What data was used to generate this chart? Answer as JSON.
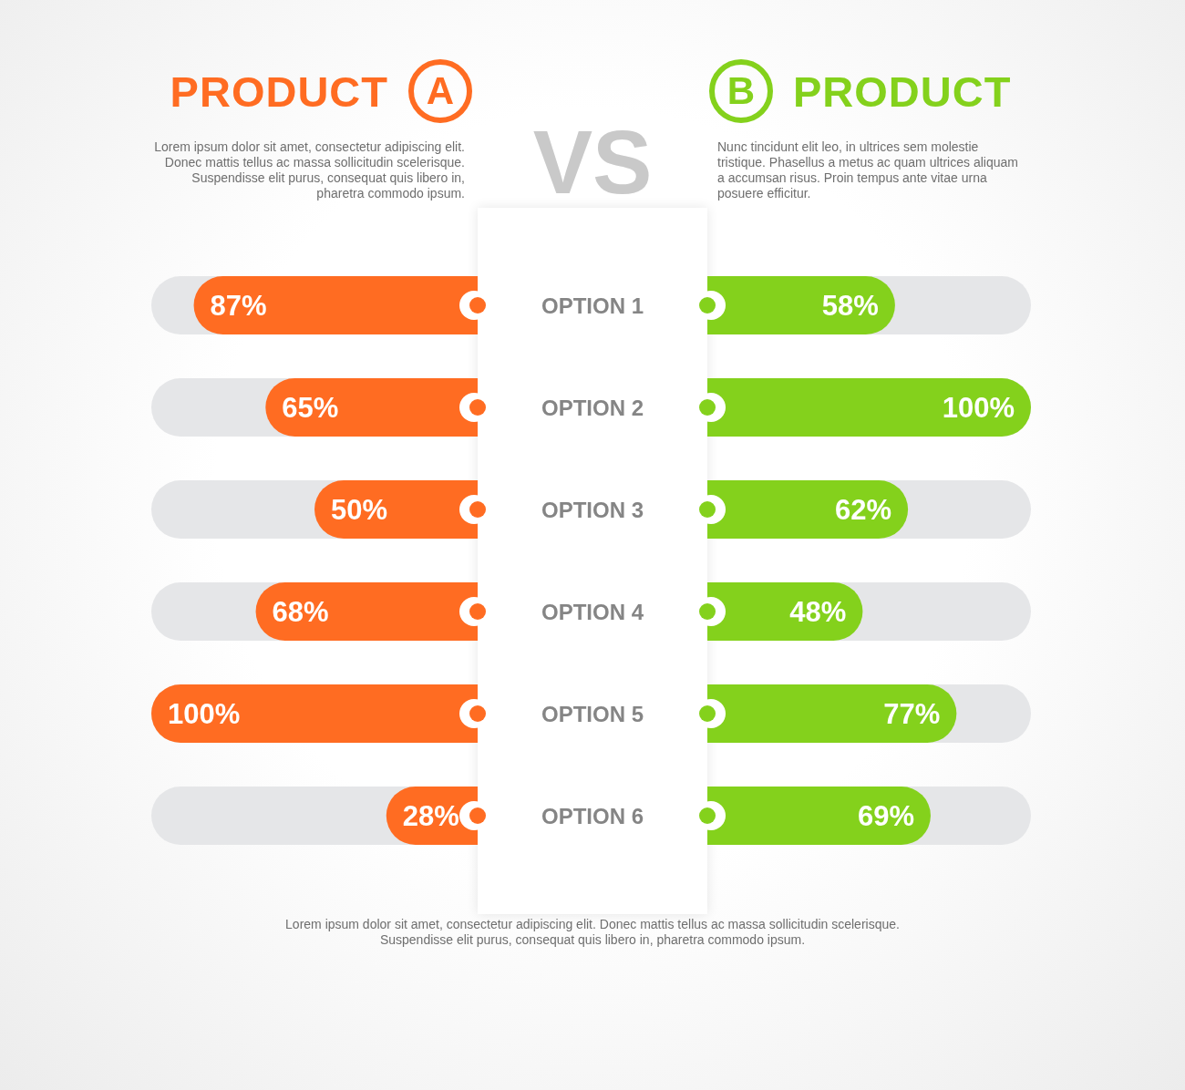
{
  "chart_data": [
    {
      "type": "bar",
      "title": "PRODUCT A",
      "subtitle": "Lorem ipsum dolor sit amet, consectetur adipiscing elit. Donec mattis tellus ac massa sollicitudin scelerisque. Suspendisse elit purus, consequat quis libero in, pharetra commodo ipsum.",
      "orientation": "horizontal",
      "categories": [
        "OPTION 1",
        "OPTION 2",
        "OPTION 3",
        "OPTION 4",
        "OPTION 5",
        "OPTION 6"
      ],
      "values": [
        87,
        65,
        50,
        68,
        100,
        28
      ],
      "value_labels": [
        "87%",
        "65%",
        "50%",
        "68%",
        "100%",
        "28%"
      ],
      "color": "#ff6c22",
      "xlim": [
        100,
        0
      ],
      "tick_labels": "y",
      "annotations": [
        "VS",
        "Lorem ipsum dolor sit amet, consectetur adipiscing elit. Donec mattis tellus ac massa sollicitudin scelerisque. Suspendisse elit purus, consequat quis libero in, pharetra commodo ipsum."
      ]
    },
    {
      "type": "bar",
      "title": "B PRODUCT",
      "subtitle": "Nunc tincidunt elit leo, in ultrices sem molestie tristique. Phasellus a metus ac quam ultrices aliquam a accumsan risus. Proin tempus ante vitae urna posuere efficitur.",
      "orientation": "horizontal",
      "categories": [
        null,
        null,
        null,
        null,
        null,
        null
      ],
      "values": [
        58,
        100,
        62,
        48,
        77,
        69
      ],
      "value_labels": [
        "58%",
        "100%",
        "62%",
        "48%",
        "77%",
        "69%"
      ],
      "color": "#84d11c",
      "xlim": [
        0,
        100
      ],
      "tick_labels": false
    }
  ]
}
